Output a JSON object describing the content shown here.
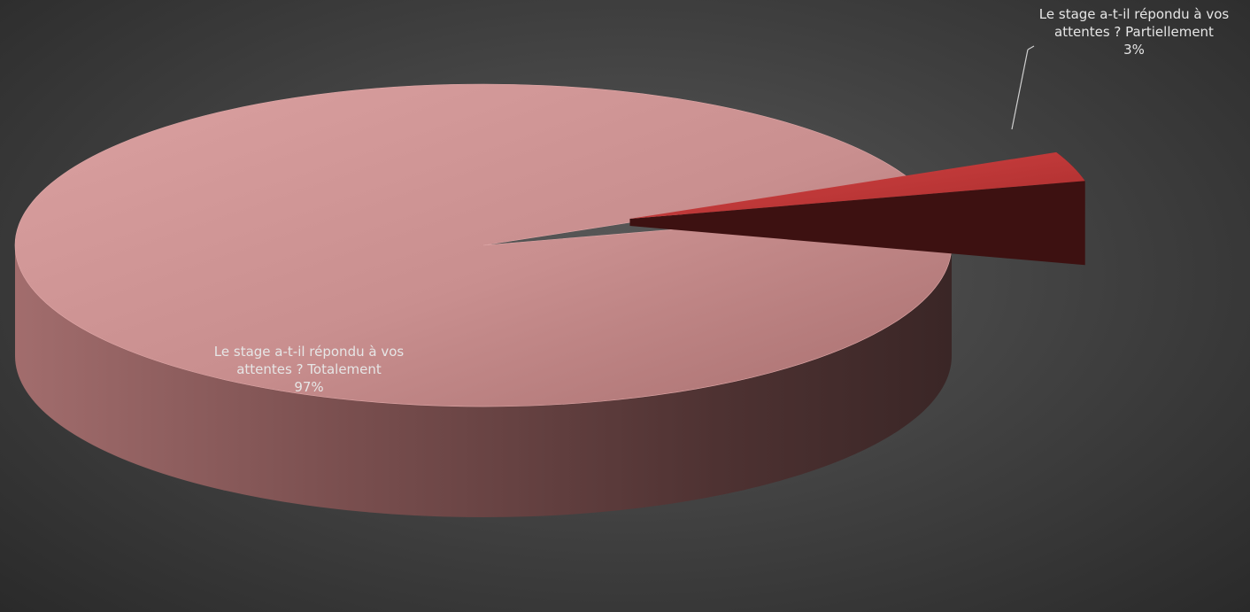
{
  "chart_data": {
    "type": "pie",
    "style": "3d-exploded",
    "title": "",
    "legend": "none",
    "series": [
      {
        "label_line1": "Le stage a-t-il répondu à vos",
        "label_line2": "attentes ?  Totalement",
        "label_pct": "97%",
        "value": 97,
        "color": "#d99a9a"
      },
      {
        "label_line1": "Le stage a-t-il répondu à vos",
        "label_line2": "attentes ?  Partiellement",
        "label_pct": "3%",
        "value": 3,
        "color": "#c83a3a"
      }
    ]
  }
}
